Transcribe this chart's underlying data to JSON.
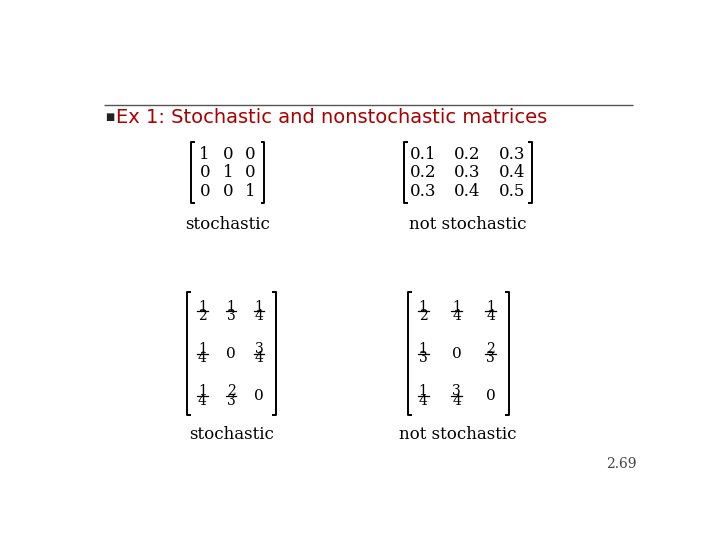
{
  "title": "Ex 1: Stochastic and nonstochastic matrices",
  "title_color": "#aa0000",
  "bullet_color": "#222222",
  "bg_color": "#ffffff",
  "slide_number": "2.69",
  "matrix1_label": "stochastic",
  "matrix2_label": "not stochastic",
  "matrix3_label": "stochastic",
  "matrix4_label": "not stochastic",
  "line_color": "#888888"
}
